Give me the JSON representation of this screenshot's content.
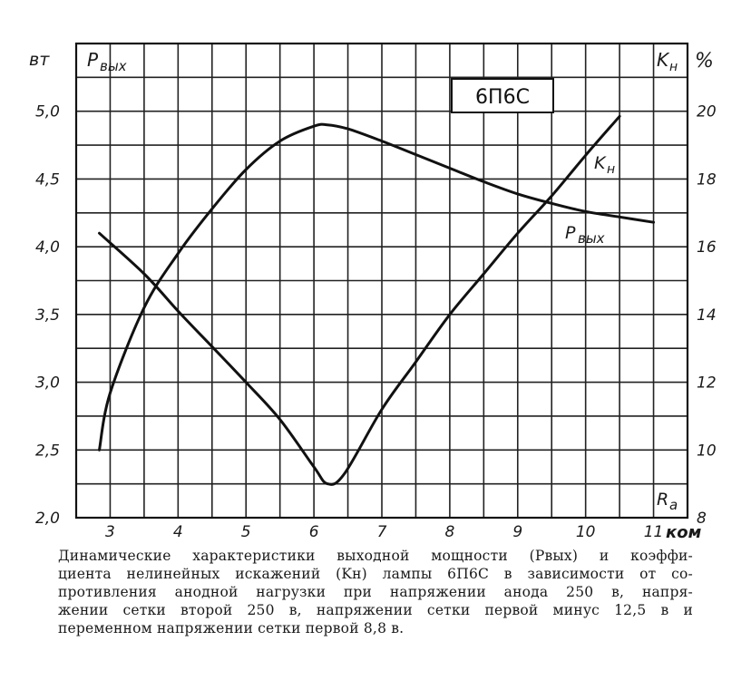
{
  "chart_data": {
    "type": "line",
    "title": "6П6С",
    "xlabel": "R_a, ком",
    "ylabel_left": "P_вых, вт",
    "ylabel_right": "K_н, %",
    "x_ticks": [
      "3",
      "4",
      "5",
      "6",
      "7",
      "8",
      "9",
      "10",
      "11"
    ],
    "x_unit": "ком",
    "x_axis_label": "R_a",
    "y_left_ticks": [
      "5,0",
      "4,5",
      "4,0",
      "3,5",
      "3,0",
      "2,5",
      "2,0"
    ],
    "y_left_unit": "вт",
    "y_left_label": "P_вых",
    "y_right_ticks": [
      "20",
      "18",
      "16",
      "14",
      "12",
      "10",
      "8"
    ],
    "y_right_unit": "%",
    "y_right_label": "K_н",
    "xlim": [
      2.5,
      11.5
    ],
    "ylim_left": [
      2.0,
      5.5
    ],
    "ylim_right": [
      8,
      22
    ],
    "grid": true,
    "series": [
      {
        "name": "P_вых",
        "axis": "left",
        "x": [
          2.84,
          3.0,
          3.5,
          4.0,
          4.5,
          5.0,
          5.5,
          6.0,
          6.2,
          6.5,
          7.0,
          7.5,
          8.0,
          8.5,
          9.0,
          9.5,
          10.0,
          10.5,
          11.0
        ],
        "y": [
          2.5,
          2.92,
          3.55,
          3.95,
          4.28,
          4.57,
          4.78,
          4.89,
          4.9,
          4.87,
          4.78,
          4.68,
          4.58,
          4.48,
          4.39,
          4.32,
          4.26,
          4.22,
          4.18
        ]
      },
      {
        "name": "K_н",
        "axis": "right",
        "x": [
          2.84,
          3.5,
          4.0,
          4.5,
          5.0,
          5.5,
          6.0,
          6.2,
          6.45,
          7.0,
          7.5,
          8.0,
          8.5,
          9.0,
          9.5,
          10.0,
          10.5
        ],
        "y": [
          16.4,
          15.2,
          14.1,
          13.05,
          12.0,
          10.9,
          9.5,
          9.0,
          9.3,
          11.2,
          12.6,
          14.0,
          15.2,
          16.4,
          17.5,
          18.7,
          19.85
        ]
      }
    ],
    "annotations": [
      {
        "text": "K_н",
        "near_series": "K_н",
        "x": 10.1,
        "y_right": 18.6
      },
      {
        "text": "P_вых",
        "near_series": "P_вых",
        "x": 9.7,
        "y_left": 4.05
      }
    ]
  },
  "labels": {
    "title_box": "6П6С",
    "left_unit": "вт",
    "left_axis_name_main": "P",
    "left_axis_name_sub": "вых",
    "right_unit": "%",
    "right_axis_name_main": "K",
    "right_axis_name_sub": "н",
    "x_axis_name_main": "R",
    "x_axis_name_sub": "a",
    "x_unit": "ком",
    "curve_k_main": "K",
    "curve_k_sub": "н",
    "curve_p_main": "P",
    "curve_p_sub": "вых"
  },
  "caption": {
    "lines": [
      "Динамические характеристики выходной мощности (Pвых) и коэффи-",
      "циента нелинейных искажений (Kн) лампы 6П6С в зависимости от со-",
      "противления анодной нагрузки при напряжении анода 250 в, напря-",
      "жении сетки второй 250 в, напряжении сетки первой минус 12,5 в и",
      "переменном напряжении сетки первой 8,8 в."
    ]
  }
}
